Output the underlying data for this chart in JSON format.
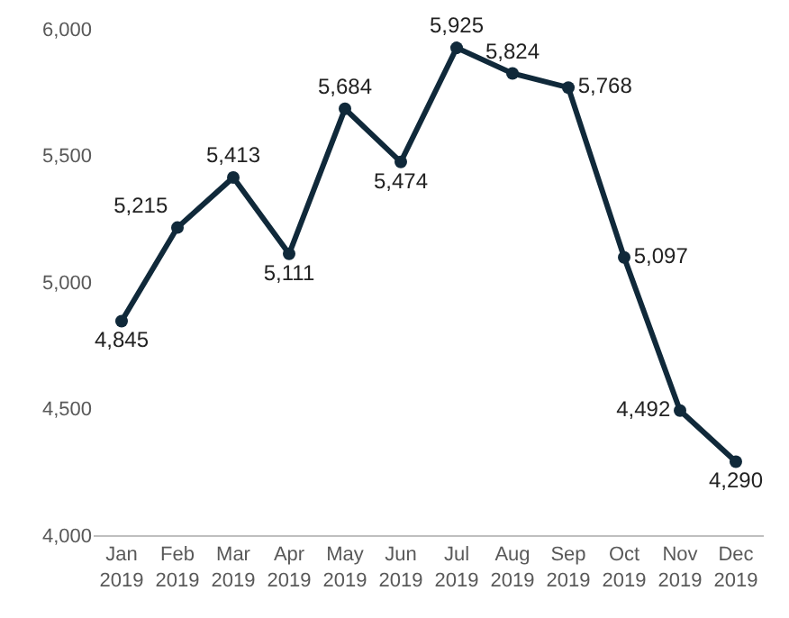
{
  "chart_data": {
    "type": "line",
    "categories": [
      "Jan 2019",
      "Feb 2019",
      "Mar 2019",
      "Apr 2019",
      "May 2019",
      "Jun 2019",
      "Jul 2019",
      "Aug 2019",
      "Sep 2019",
      "Oct 2019",
      "Nov 2019",
      "Dec 2019"
    ],
    "values": [
      4845,
      5215,
      5413,
      5111,
      5684,
      5474,
      5925,
      5824,
      5768,
      5097,
      4492,
      4290
    ],
    "color": "#10293a",
    "ylim": [
      4000,
      6000
    ],
    "yticks": [
      {
        "value": 4000,
        "label": "4,000"
      },
      {
        "value": 4500,
        "label": "4,500"
      },
      {
        "value": 5000,
        "label": "5,000"
      },
      {
        "value": 5500,
        "label": "5,500"
      },
      {
        "value": 6000,
        "label": "6,000"
      }
    ],
    "value_labels": [
      "4,845",
      "5,215",
      "5,413",
      "5,111",
      "5,684",
      "5,474",
      "5,925",
      "5,824",
      "5,768",
      "5,097",
      "4,492",
      "4,290"
    ],
    "marker": "circle",
    "line_style": "solid"
  }
}
